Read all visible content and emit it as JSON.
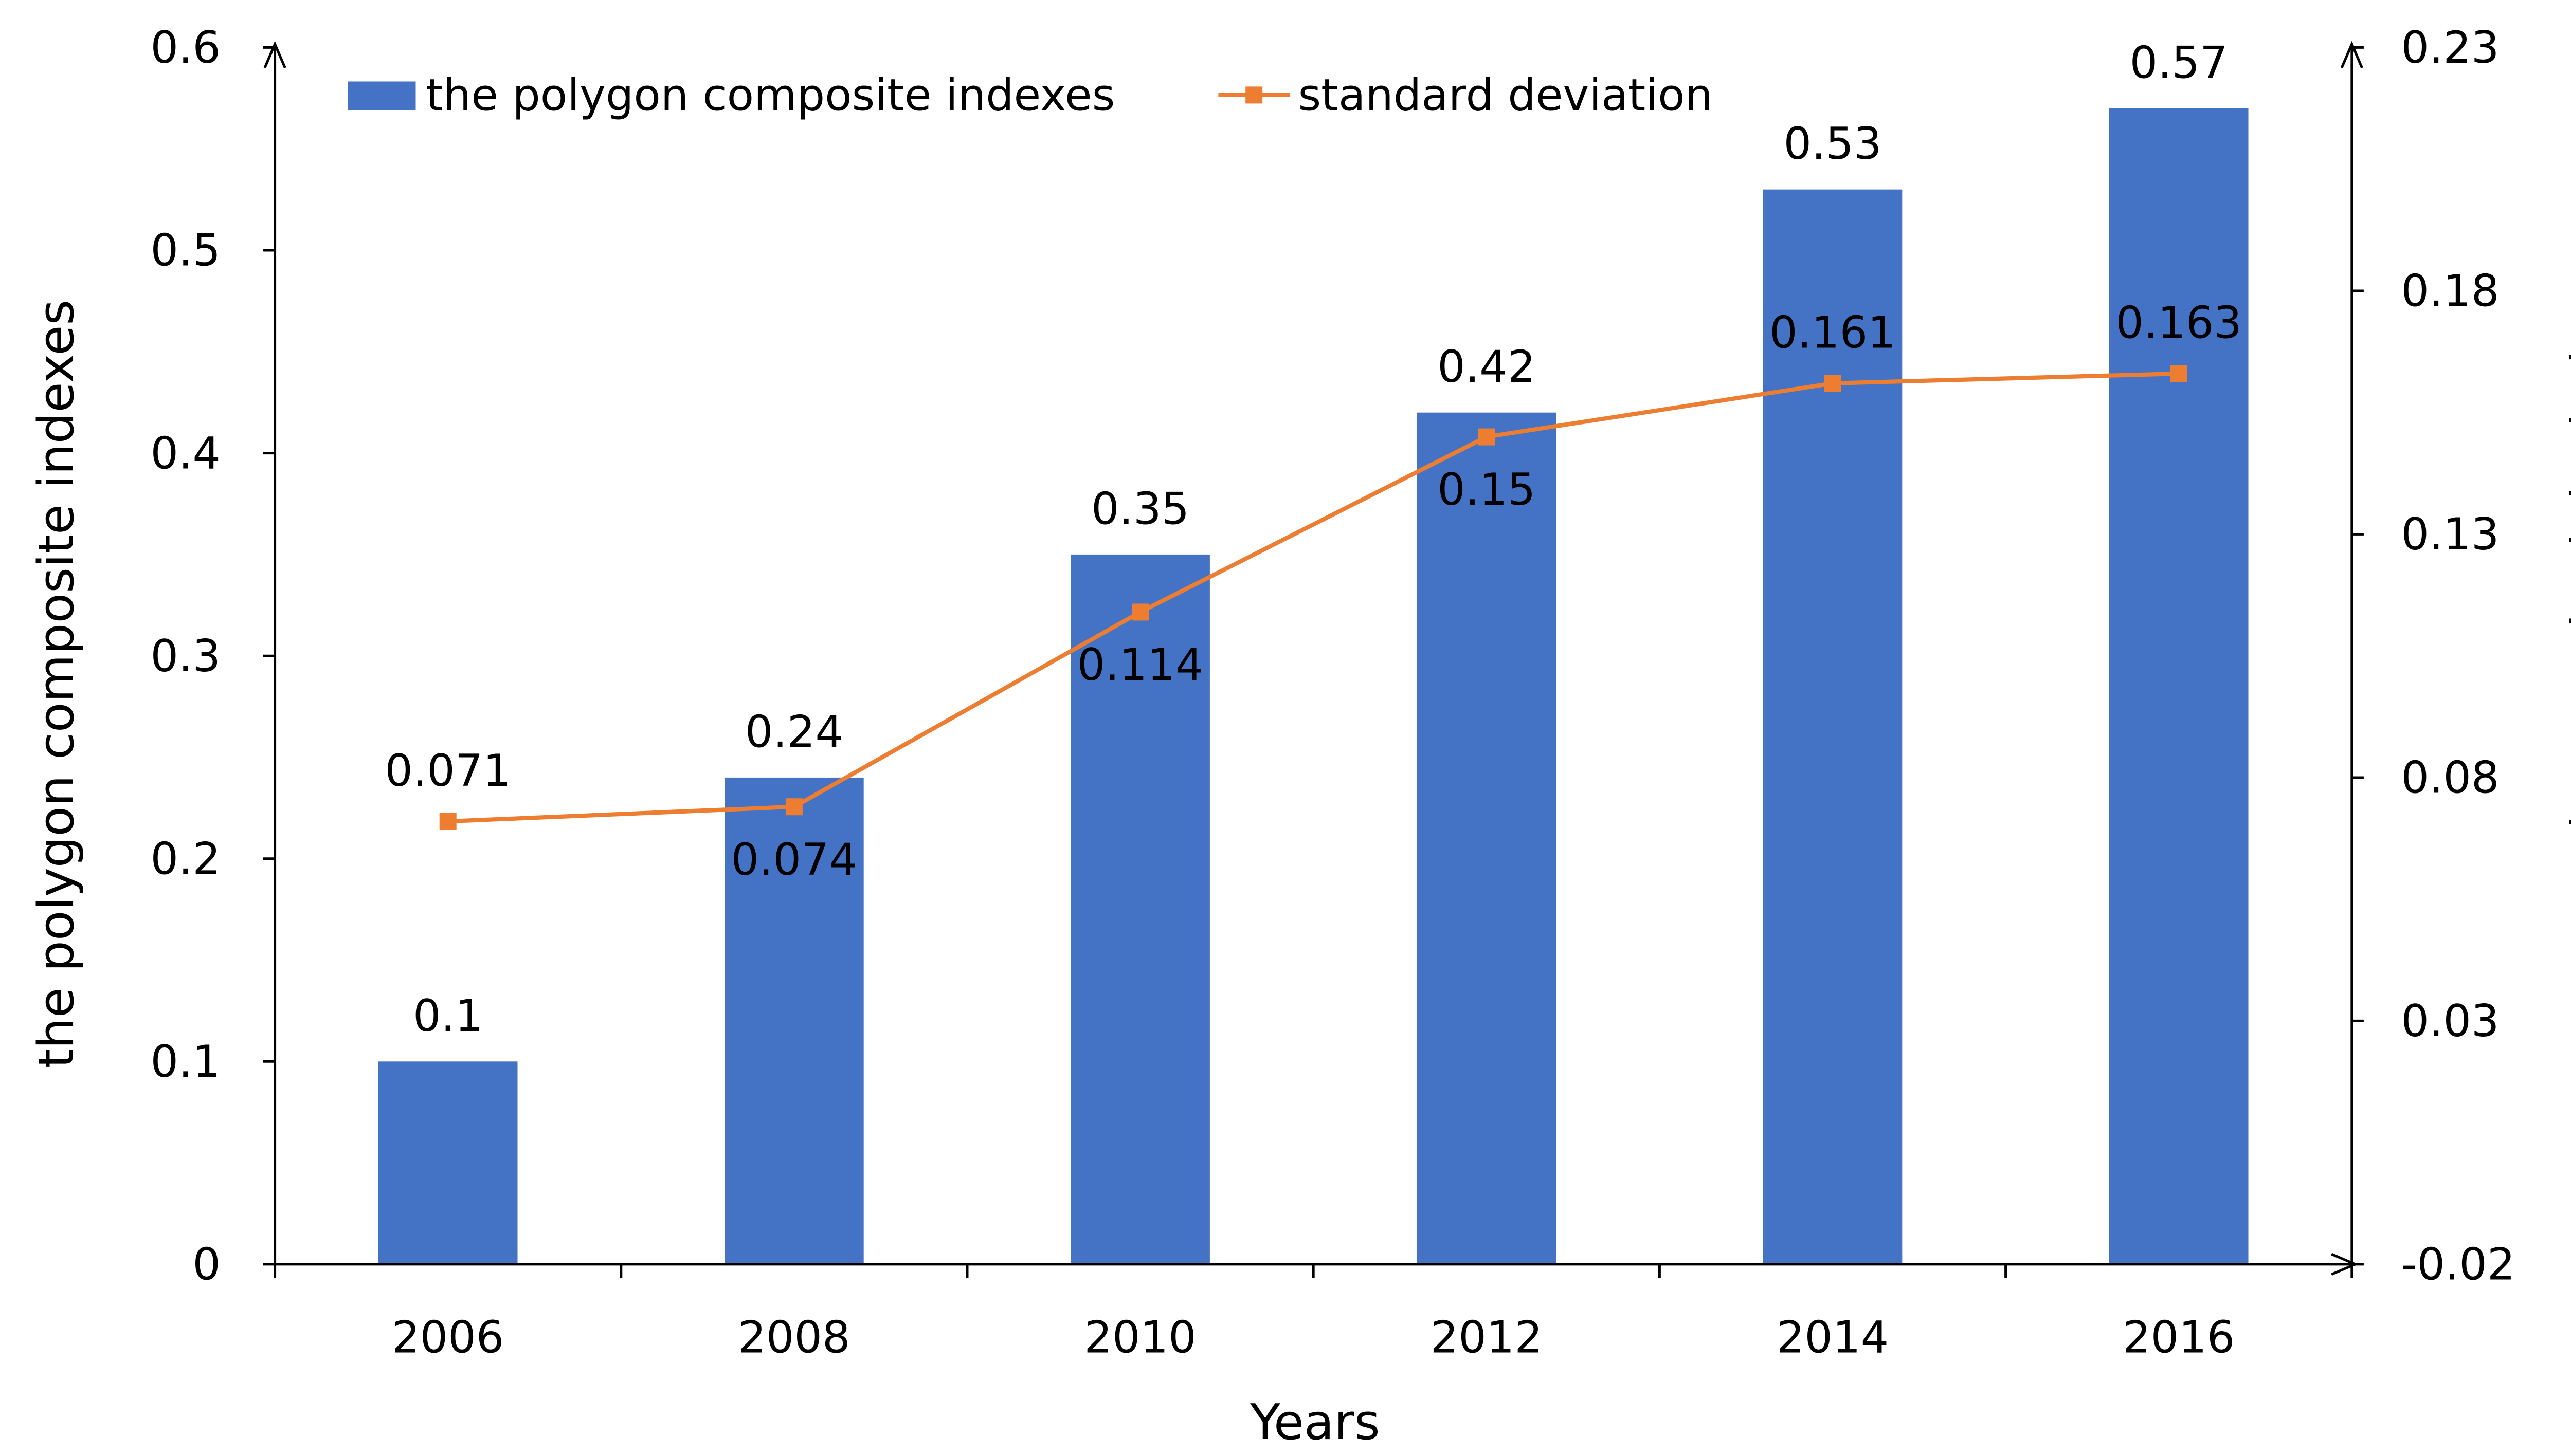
{
  "chart_data": {
    "type": "bar+line",
    "title": "",
    "xlabel": "Years",
    "ylabel": "the polygon composite indexes",
    "y2label": "the standard deviation",
    "categories": [
      "2006",
      "2008",
      "2010",
      "2012",
      "2014",
      "2016"
    ],
    "ylim": [
      0,
      0.6
    ],
    "yticks": [
      "0",
      "0.1",
      "0.2",
      "0.3",
      "0.4",
      "0.5",
      "0.6"
    ],
    "y2lim": [
      -0.02,
      0.23
    ],
    "y2ticks": [
      "-0.02",
      "0.03",
      "0.08",
      "0.13",
      "0.18",
      "0.23"
    ],
    "grid": false,
    "legend_position": "top",
    "series": [
      {
        "name": "the polygon composite indexes",
        "type": "bar",
        "axis": "left",
        "color": "#4472C4",
        "values": [
          0.1,
          0.24,
          0.35,
          0.42,
          0.53,
          0.57
        ],
        "labels": [
          "0.1",
          "0.24",
          "0.35",
          "0.42",
          "0.53",
          "0.57"
        ]
      },
      {
        "name": "standard deviation",
        "type": "line",
        "axis": "right",
        "color": "#ED7D31",
        "marker": "square",
        "values": [
          0.071,
          0.074,
          0.114,
          0.15,
          0.161,
          0.163
        ],
        "labels": [
          "0.071",
          "0.074",
          "0.114",
          "0.15",
          "0.161",
          "0.163"
        ],
        "label_positions": [
          "above",
          "below",
          "below",
          "below",
          "above",
          "above"
        ]
      }
    ]
  }
}
